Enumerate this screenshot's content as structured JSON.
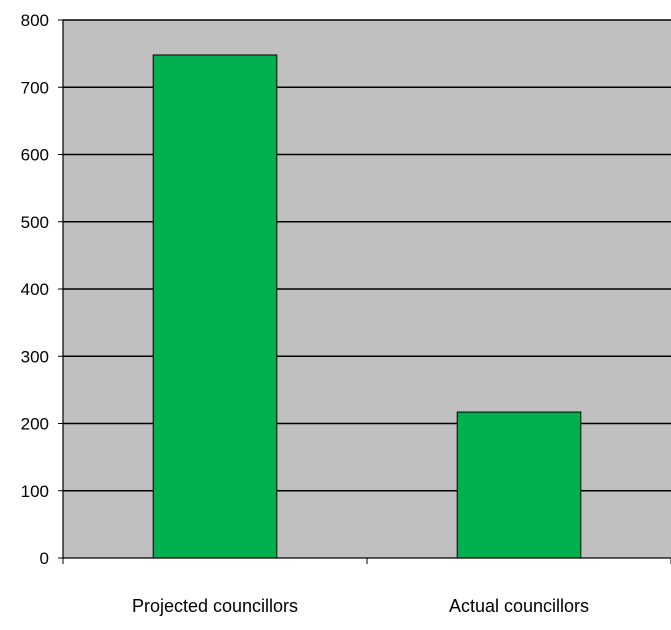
{
  "chart_data": {
    "type": "bar",
    "categories": [
      "Projected councillors",
      "Actual councillors"
    ],
    "values": [
      748,
      217
    ],
    "title": "",
    "xlabel": "",
    "ylabel": "",
    "ylim": [
      0,
      800
    ],
    "yticks": [
      0,
      100,
      200,
      300,
      400,
      500,
      600,
      700,
      800
    ],
    "ytick_labels": [
      "0",
      "100",
      "200",
      "300",
      "400",
      "500",
      "600",
      "700",
      "800"
    ],
    "grid": "horizontal",
    "legend": "none"
  },
  "colors": {
    "plot_background": "#c0c0c0",
    "bar_fill": "#00b04f",
    "bar_stroke": "#000000",
    "gridline": "#000000",
    "axis": "#000000"
  }
}
